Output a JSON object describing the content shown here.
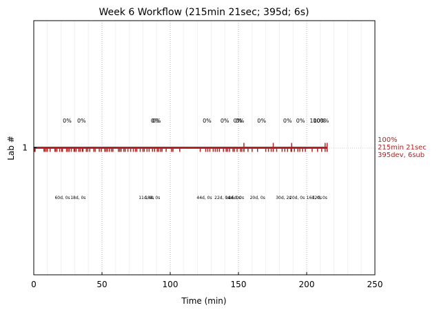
{
  "chart_data": {
    "type": "line",
    "title": "Week 6 Workflow (215min 21sec; 395d; 6s)",
    "xlabel": "Time (min)",
    "ylabel": "Lab #",
    "xlim": [
      0,
      250
    ],
    "ylim": [
      0,
      2
    ],
    "xticks": [
      0,
      50,
      100,
      150,
      200,
      250
    ],
    "xtick_labels": [
      "0",
      "50",
      "100",
      "150",
      "200",
      "250"
    ],
    "yticks": [
      1
    ],
    "ytick_labels": [
      "1"
    ],
    "grid": "vertical dotted at major ticks, faint minor lines",
    "end_marker_x": 215.35,
    "series_color": "#b22222",
    "end_label": [
      "100%",
      "215min 21sec",
      "395dev, 6sub"
    ],
    "progress_labels": [
      {
        "x": 24.5,
        "text": "0%"
      },
      {
        "x": 35.0,
        "text": "0%"
      },
      {
        "x": 89.0,
        "text": "0%"
      },
      {
        "x": 90.0,
        "text": "0%"
      },
      {
        "x": 127.0,
        "text": "0%"
      },
      {
        "x": 140.0,
        "text": "0%"
      },
      {
        "x": 149.5,
        "text": "0%"
      },
      {
        "x": 151.0,
        "text": "0%"
      },
      {
        "x": 167.0,
        "text": "0%"
      },
      {
        "x": 186.0,
        "text": "0%"
      },
      {
        "x": 195.5,
        "text": "0%"
      },
      {
        "x": 208.0,
        "text": "100%"
      },
      {
        "x": 210.5,
        "text": "100%"
      }
    ],
    "submission_labels": [
      {
        "x": 21.0,
        "text": "60d, 0s"
      },
      {
        "x": 32.5,
        "text": "18d, 0s"
      },
      {
        "x": 82.5,
        "text": "11d, 0s"
      },
      {
        "x": 87.0,
        "text": "18d, 0s"
      },
      {
        "x": 125.0,
        "text": "44d, 0s"
      },
      {
        "x": 138.0,
        "text": "22d, 0s"
      },
      {
        "x": 146.0,
        "text": "14d, 0s"
      },
      {
        "x": 148.5,
        "text": "16d, 0s"
      },
      {
        "x": 164.0,
        "text": "20d, 0s"
      },
      {
        "x": 183.0,
        "text": "30d, 2s"
      },
      {
        "x": 193.0,
        "text": "20d, 0s"
      },
      {
        "x": 205.5,
        "text": "16d, 0s"
      },
      {
        "x": 209.5,
        "text": "12d, 0s"
      }
    ],
    "dev_events_x": [
      0.5,
      1.0,
      7.5,
      8.0,
      9.0,
      10.0,
      12.0,
      15.5,
      16.0,
      17.0,
      19.0,
      20.5,
      21.0,
      24.0,
      25.0,
      26.0,
      27.5,
      29.5,
      30.0,
      31.0,
      33.0,
      34.0,
      35.5,
      36.0,
      38.5,
      39.5,
      41.0,
      44.0,
      45.0,
      48.0,
      49.5,
      52.0,
      53.0,
      54.0,
      55.5,
      57.0,
      58.0,
      62.0,
      63.0,
      64.0,
      66.0,
      67.0,
      69.0,
      71.0,
      73.0,
      74.5,
      75.5,
      78.0,
      80.0,
      81.0,
      83.0,
      84.5,
      87.0,
      88.5,
      90.5,
      91.5,
      93.0,
      94.0,
      97.0,
      101.0,
      102.0,
      107.0,
      122.0,
      126.0,
      127.5,
      129.0,
      131.5,
      133.0,
      134.5,
      136.0,
      139.0,
      141.0,
      142.0,
      143.5,
      146.0,
      147.0,
      149.0,
      151.5,
      152.5,
      154.0,
      157.0,
      160.0,
      164.0,
      170.0,
      172.0,
      174.0,
      175.5,
      178.0,
      182.0,
      184.0,
      186.0,
      188.5,
      191.0,
      193.5,
      195.0,
      197.0,
      199.0,
      204.0,
      208.0,
      211.0,
      213.5,
      215.0
    ],
    "sub_events_x": [
      154.0,
      175.5,
      189.0,
      213.5,
      215.0
    ]
  }
}
